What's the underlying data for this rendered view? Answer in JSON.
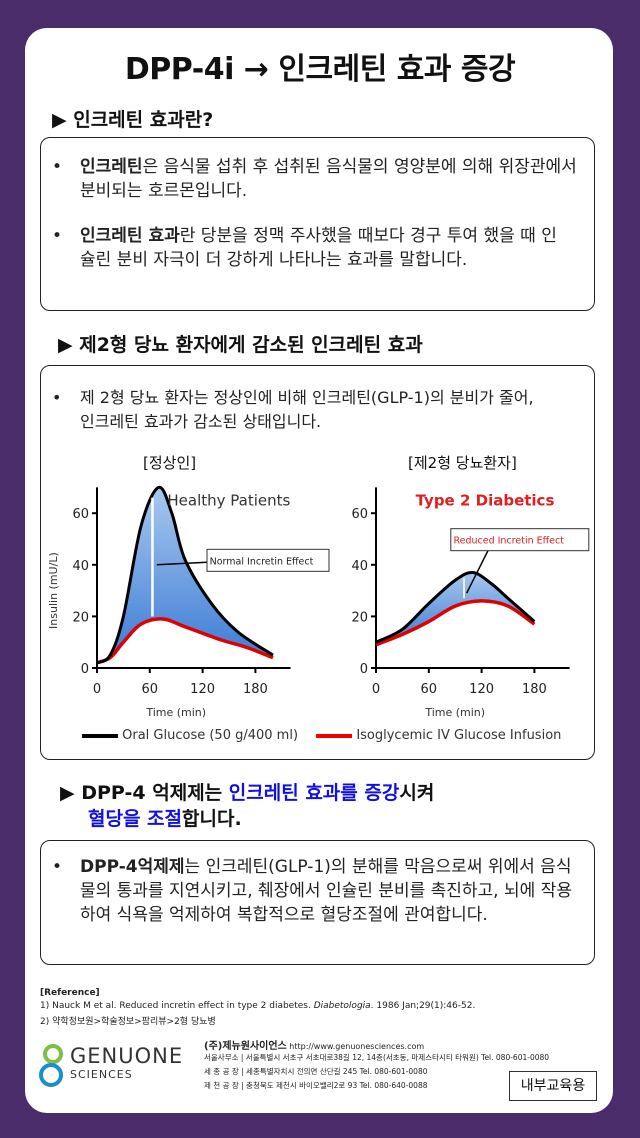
{
  "title": "DPP-4i → 인크레틴 효과 증강",
  "section1": {
    "heading": "▶ 인크레틴 효과란?",
    "b1_bold": "인크레틴",
    "b1_text": "은 음식물 섭취 후 섭취된 음식물의 영양분에 의해 위장관에서 분비되는 호르몬입니다.",
    "b2_bold": "인크레틴 효과",
    "b2_text": "란 당분을 정맥 주사했을 때보다 경구 투여 했을 때 인슐린 분비 자극이 더 강하게 나타나는 효과를 말합니다."
  },
  "section2": {
    "heading": "▶ 제2형 당뇨 환자에게 감소된 인크레틴 효과",
    "b1_text": "제 2형 당뇨 환자는 정상인에 비해 인크레틴(GLP-1)의 분비가 줄어, 인크레틴 효과가 감소된 상태입니다.",
    "label_left": "[정상인]",
    "label_right": "[제2형 당뇨환자]"
  },
  "chart_data": [
    {
      "type": "line",
      "title": "Healthy Patients",
      "title_color": "#333333",
      "xlabel": "Time (min)",
      "ylabel": "Insulin (mU/L)",
      "xticks": [
        0,
        60,
        120,
        180
      ],
      "yticks": [
        0,
        20,
        40,
        60
      ],
      "xlim": [
        0,
        220
      ],
      "ylim": [
        0,
        70
      ],
      "annotation": "Normal Incretin Effect",
      "series": [
        {
          "name": "Oral Glucose (50 g/400 ml)",
          "color": "#000000",
          "x": [
            0,
            15,
            30,
            50,
            70,
            85,
            100,
            130,
            160,
            200
          ],
          "y": [
            2,
            5,
            20,
            55,
            70,
            60,
            42,
            25,
            14,
            5
          ]
        },
        {
          "name": "Isoglycemic IV Glucose Infusion",
          "color": "#e00000",
          "x": [
            0,
            15,
            30,
            50,
            75,
            100,
            140,
            170,
            200
          ],
          "y": [
            2,
            4,
            10,
            17,
            19,
            16,
            11,
            8,
            4
          ]
        }
      ]
    },
    {
      "type": "line",
      "title": "Type 2 Diabetics",
      "title_color": "#e02020",
      "xlabel": "Time (min)",
      "ylabel": "",
      "xticks": [
        0,
        60,
        120,
        180
      ],
      "yticks": [
        0,
        20,
        40,
        60
      ],
      "xlim": [
        0,
        220
      ],
      "ylim": [
        0,
        70
      ],
      "annotation": "Reduced Incretin Effect",
      "series": [
        {
          "name": "Oral Glucose (50 g/400 ml)",
          "color": "#000000",
          "x": [
            0,
            30,
            60,
            90,
            110,
            130,
            150,
            180
          ],
          "y": [
            10,
            15,
            25,
            34,
            37,
            33,
            27,
            18
          ]
        },
        {
          "name": "Isoglycemic IV Glucose Infusion",
          "color": "#e00000",
          "x": [
            0,
            30,
            60,
            90,
            120,
            150,
            180
          ],
          "y": [
            9,
            13,
            18,
            24,
            26,
            24,
            17
          ]
        }
      ]
    }
  ],
  "legend": {
    "oral": "Oral Glucose (50 g/400 ml)",
    "iv": "Isoglycemic IV Glucose Infusion"
  },
  "section3": {
    "h_pre": "▶ DPP-4 억제제는 ",
    "h_blue1": "인크레틴 효과를 증강",
    "h_mid": "시켜",
    "h_blue2": "혈당을 조절",
    "h_post": "합니다.",
    "b1_bold": "DPP-4억제제",
    "b1_text": "는 인크레틴(GLP-1)의 분해를 막음으로써 위에서 음식물의 통과를 지연시키고, 췌장에서 인슐린 분비를 촉진하고, 뇌에 작용하여 식욕을 억제하여 복합적으로 혈당조절에 관여합니다."
  },
  "reference": {
    "heading": "[Reference]",
    "r1": "1)    Nauck M et al. Reduced incretin effect in type 2 diabetes. ",
    "r1_journal": "Diabetologia",
    "r1_tail": ". 1986 Jan;29(1):46-52.",
    "r2": "2)    약학정보원>학술정보>팜리뷰>2형 당뇨병"
  },
  "company": {
    "logo_line1": "GENUONE",
    "logo_line2": "SCIENCES",
    "name": "(주)제뉴원사이언스",
    "url": "http://www.genuonesciences.com",
    "addr1": "서울사무소 | 서울특별시 서초구 서초대로38길 12, 14층(서초동, 마제스타시티 타워원)  Tel. 080-601-0080",
    "addr2": "세 종 공 장 | 세종특별자치시 전의면 산단길 245  Tel. 080-601-0080",
    "addr3": "제 천 공 장 | 충청북도 제천시 바이오밸리2로 93  Tel. 080-640-0088",
    "stamp": "내부교육용"
  }
}
